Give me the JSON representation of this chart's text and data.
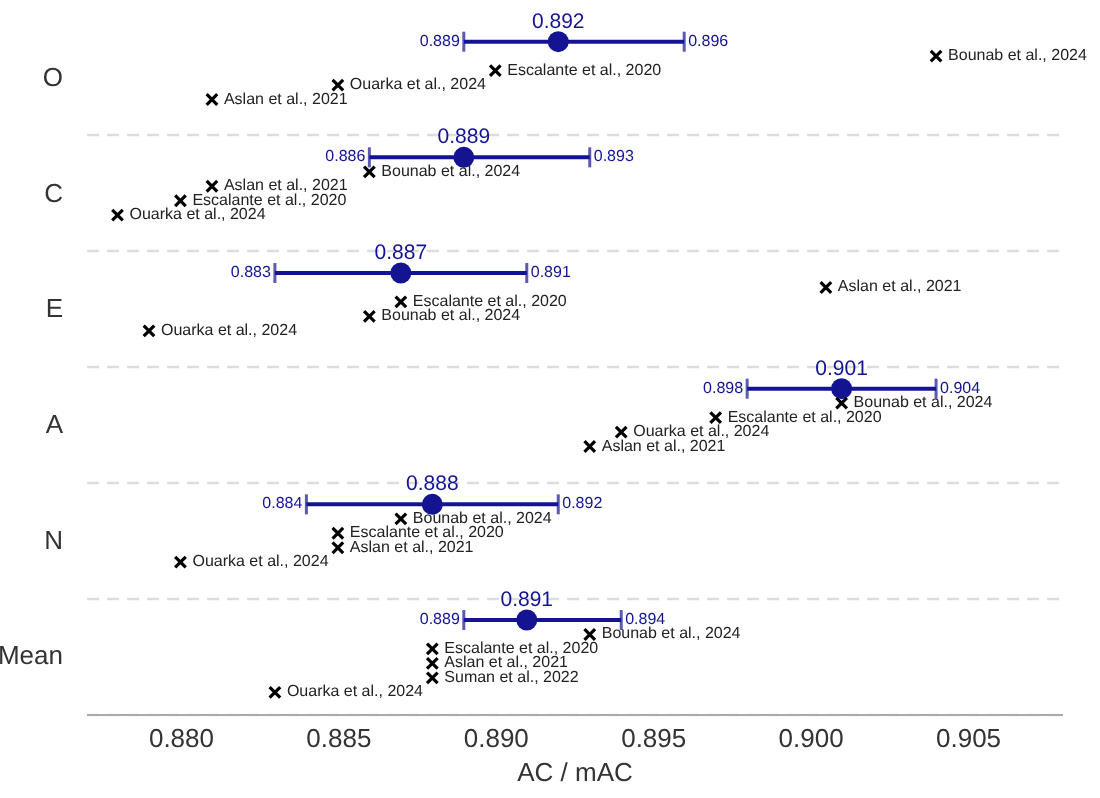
{
  "chart_data": {
    "type": "scatter",
    "orientation": "horizontal",
    "xlabel": "AC / mAC",
    "categories": [
      "O",
      "C",
      "E",
      "A",
      "N",
      "Mean"
    ],
    "xlim": [
      0.877,
      0.908
    ],
    "xticks": [
      {
        "value": 0.88,
        "label": "0.880"
      },
      {
        "value": 0.885,
        "label": "0.885"
      },
      {
        "value": 0.89,
        "label": "0.890"
      },
      {
        "value": 0.895,
        "label": "0.895"
      },
      {
        "value": 0.9,
        "label": "0.900"
      },
      {
        "value": 0.905,
        "label": "0.905"
      }
    ],
    "grid": "y",
    "series": [
      {
        "color": "#141493",
        "marker": "circle",
        "values": [
          0.892,
          0.889,
          0.887,
          0.901,
          0.888,
          0.891
        ],
        "errors": [
          [
            0.889,
            0.896
          ],
          [
            0.886,
            0.893
          ],
          [
            0.883,
            0.891
          ],
          [
            0.898,
            0.904
          ],
          [
            0.884,
            0.892
          ],
          [
            0.889,
            0.894
          ]
        ],
        "value_labels": [
          "0.892",
          "0.889",
          "0.887",
          "0.901",
          "0.888",
          "0.891"
        ]
      },
      {
        "name": "Bounab et al., 2024",
        "color": "#000000",
        "marker": "cross",
        "values": [
          0.904,
          0.886,
          0.886,
          0.901,
          0.887,
          0.893
        ]
      },
      {
        "name": "Escalante et al., 2020",
        "color": "#000000",
        "marker": "cross",
        "values": [
          0.89,
          0.88,
          0.887,
          0.897,
          0.885,
          0.888
        ]
      },
      {
        "name": "Aslan et al., 2021",
        "color": "#000000",
        "marker": "cross",
        "values": [
          0.881,
          0.881,
          0.9005,
          0.893,
          0.885,
          0.888
        ]
      },
      {
        "name": "Suman et al., 2022",
        "color": "#000000",
        "marker": "cross",
        "values": [
          null,
          null,
          null,
          null,
          null,
          0.888
        ]
      },
      {
        "name": "Ouarka et al., 2024",
        "color": "#000000",
        "marker": "cross",
        "values": [
          0.885,
          0.878,
          0.879,
          0.894,
          0.88,
          0.883
        ]
      }
    ],
    "annotations": [
      "0.889",
      "0.896",
      "0.886",
      "0.893",
      "0.883",
      "0.891",
      "0.898",
      "0.904",
      "0.884",
      "0.892",
      "0.889",
      "0.894"
    ]
  }
}
